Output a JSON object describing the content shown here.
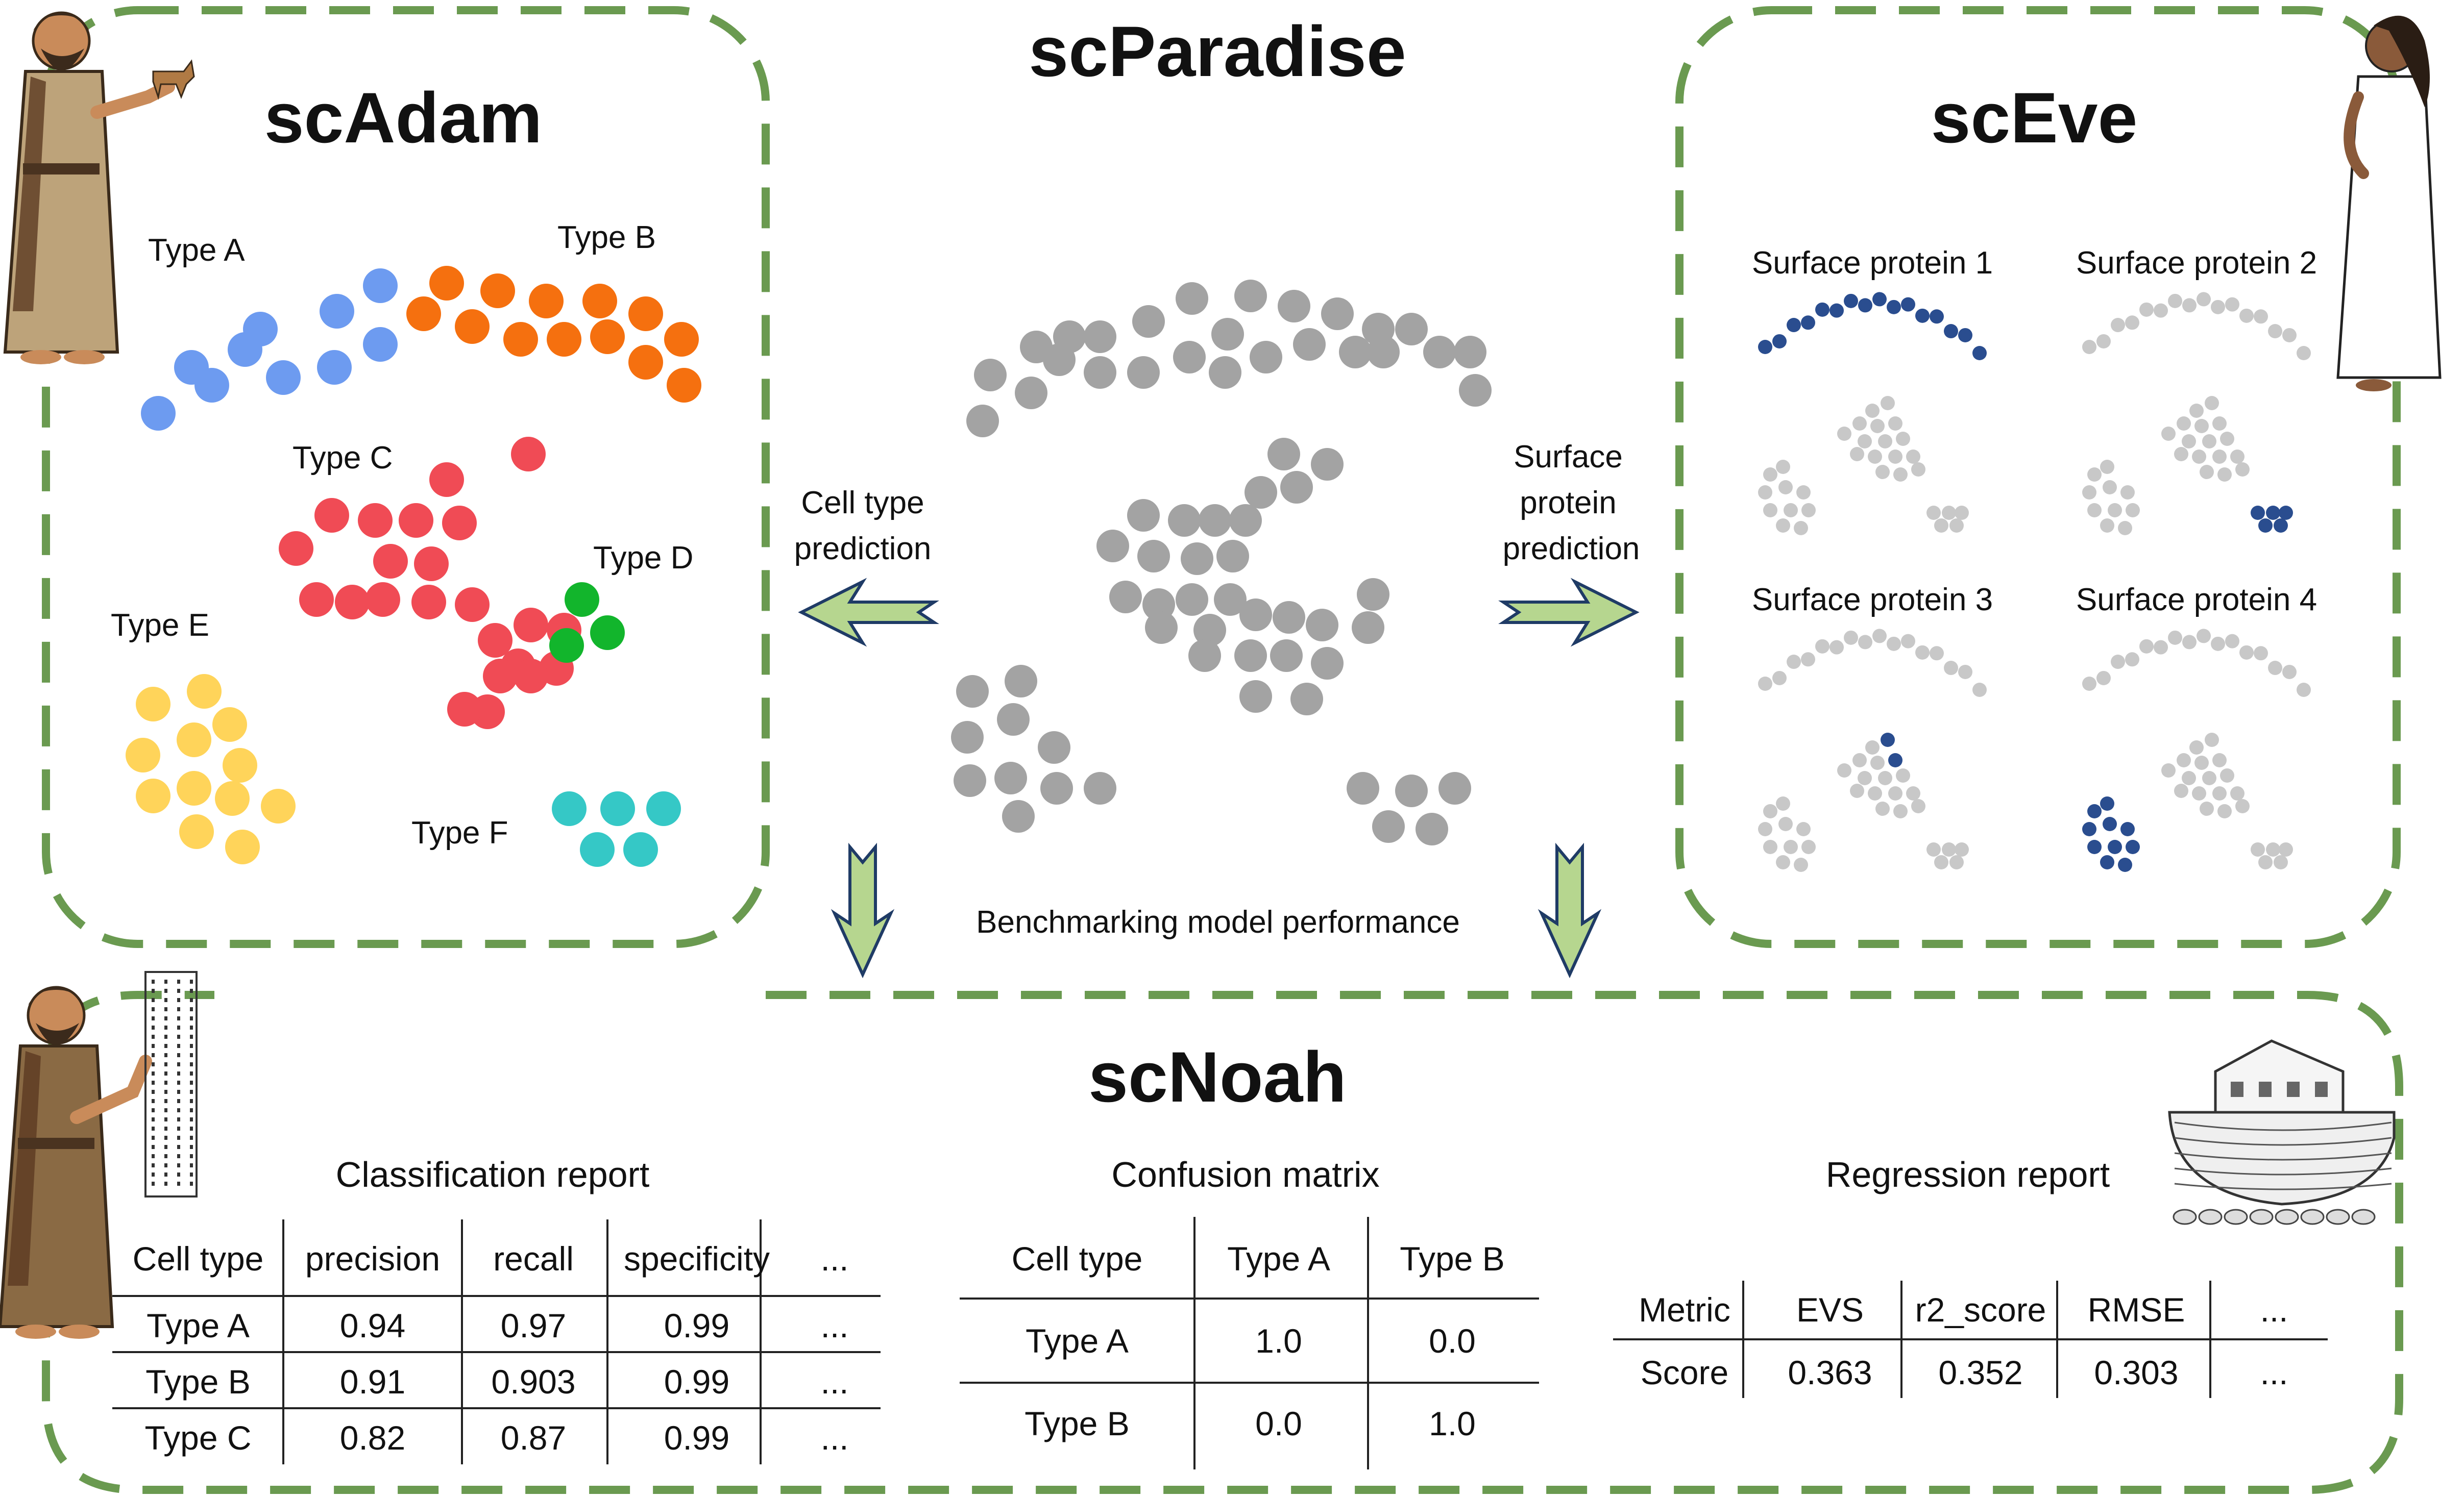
{
  "title": "scParadise",
  "colors": {
    "frame": "#6a9a50",
    "arrow_fill": "#b6d68f",
    "arrow_stroke": "#1f3b66",
    "gray": "#a3a3a3",
    "light_gray": "#c8c8c8",
    "navy": "#2a4d8f"
  },
  "scAdam": {
    "title": "scAdam",
    "types": [
      {
        "label": "Type A",
        "color": "#6d9bf0"
      },
      {
        "label": "Type B",
        "color": "#f5700f"
      },
      {
        "label": "Type C",
        "color": "#f04b55"
      },
      {
        "label": "Type D",
        "color": "#12b52c"
      },
      {
        "label": "Type E",
        "color": "#ffd45a"
      },
      {
        "label": "Type F",
        "color": "#35c8c6"
      }
    ]
  },
  "scEve": {
    "title": "scEve",
    "panels": [
      {
        "label": "Surface protein 1"
      },
      {
        "label": "Surface protein 2"
      },
      {
        "label": "Surface protein 3"
      },
      {
        "label": "Surface protein 4"
      }
    ]
  },
  "center": {
    "left_arrow_label": [
      "Cell type",
      "prediction"
    ],
    "right_arrow_label": [
      "Surface",
      "protein",
      "prediction"
    ],
    "bottom_label": "Benchmarking model performance"
  },
  "scNoah": {
    "title": "scNoah",
    "classification": {
      "title": "Classification report",
      "headers": [
        "Cell type",
        "precision",
        "recall",
        "specificity",
        "..."
      ],
      "rows": [
        [
          "Type A",
          "0.94",
          "0.97",
          "0.99",
          "..."
        ],
        [
          "Type B",
          "0.91",
          "0.903",
          "0.99",
          "..."
        ],
        [
          "Type C",
          "0.82",
          "0.87",
          "0.99",
          "..."
        ]
      ]
    },
    "confusion": {
      "title": "Confusion matrix",
      "headers": [
        "Cell type",
        "Type A",
        "Type B"
      ],
      "rows": [
        [
          "Type A",
          "1.0",
          "0.0"
        ],
        [
          "Type B",
          "0.0",
          "1.0"
        ]
      ]
    },
    "regression": {
      "title": "Regression report",
      "headers": [
        "Metric",
        "EVS",
        "r2_score",
        "RMSE",
        "..."
      ],
      "rows": [
        [
          "Score",
          "0.363",
          "0.352",
          "0.303",
          "..."
        ]
      ]
    }
  },
  "figures": [
    {
      "name": "adam-illustration"
    },
    {
      "name": "eve-illustration"
    },
    {
      "name": "noah-illustration"
    },
    {
      "name": "ark-illustration"
    }
  ]
}
